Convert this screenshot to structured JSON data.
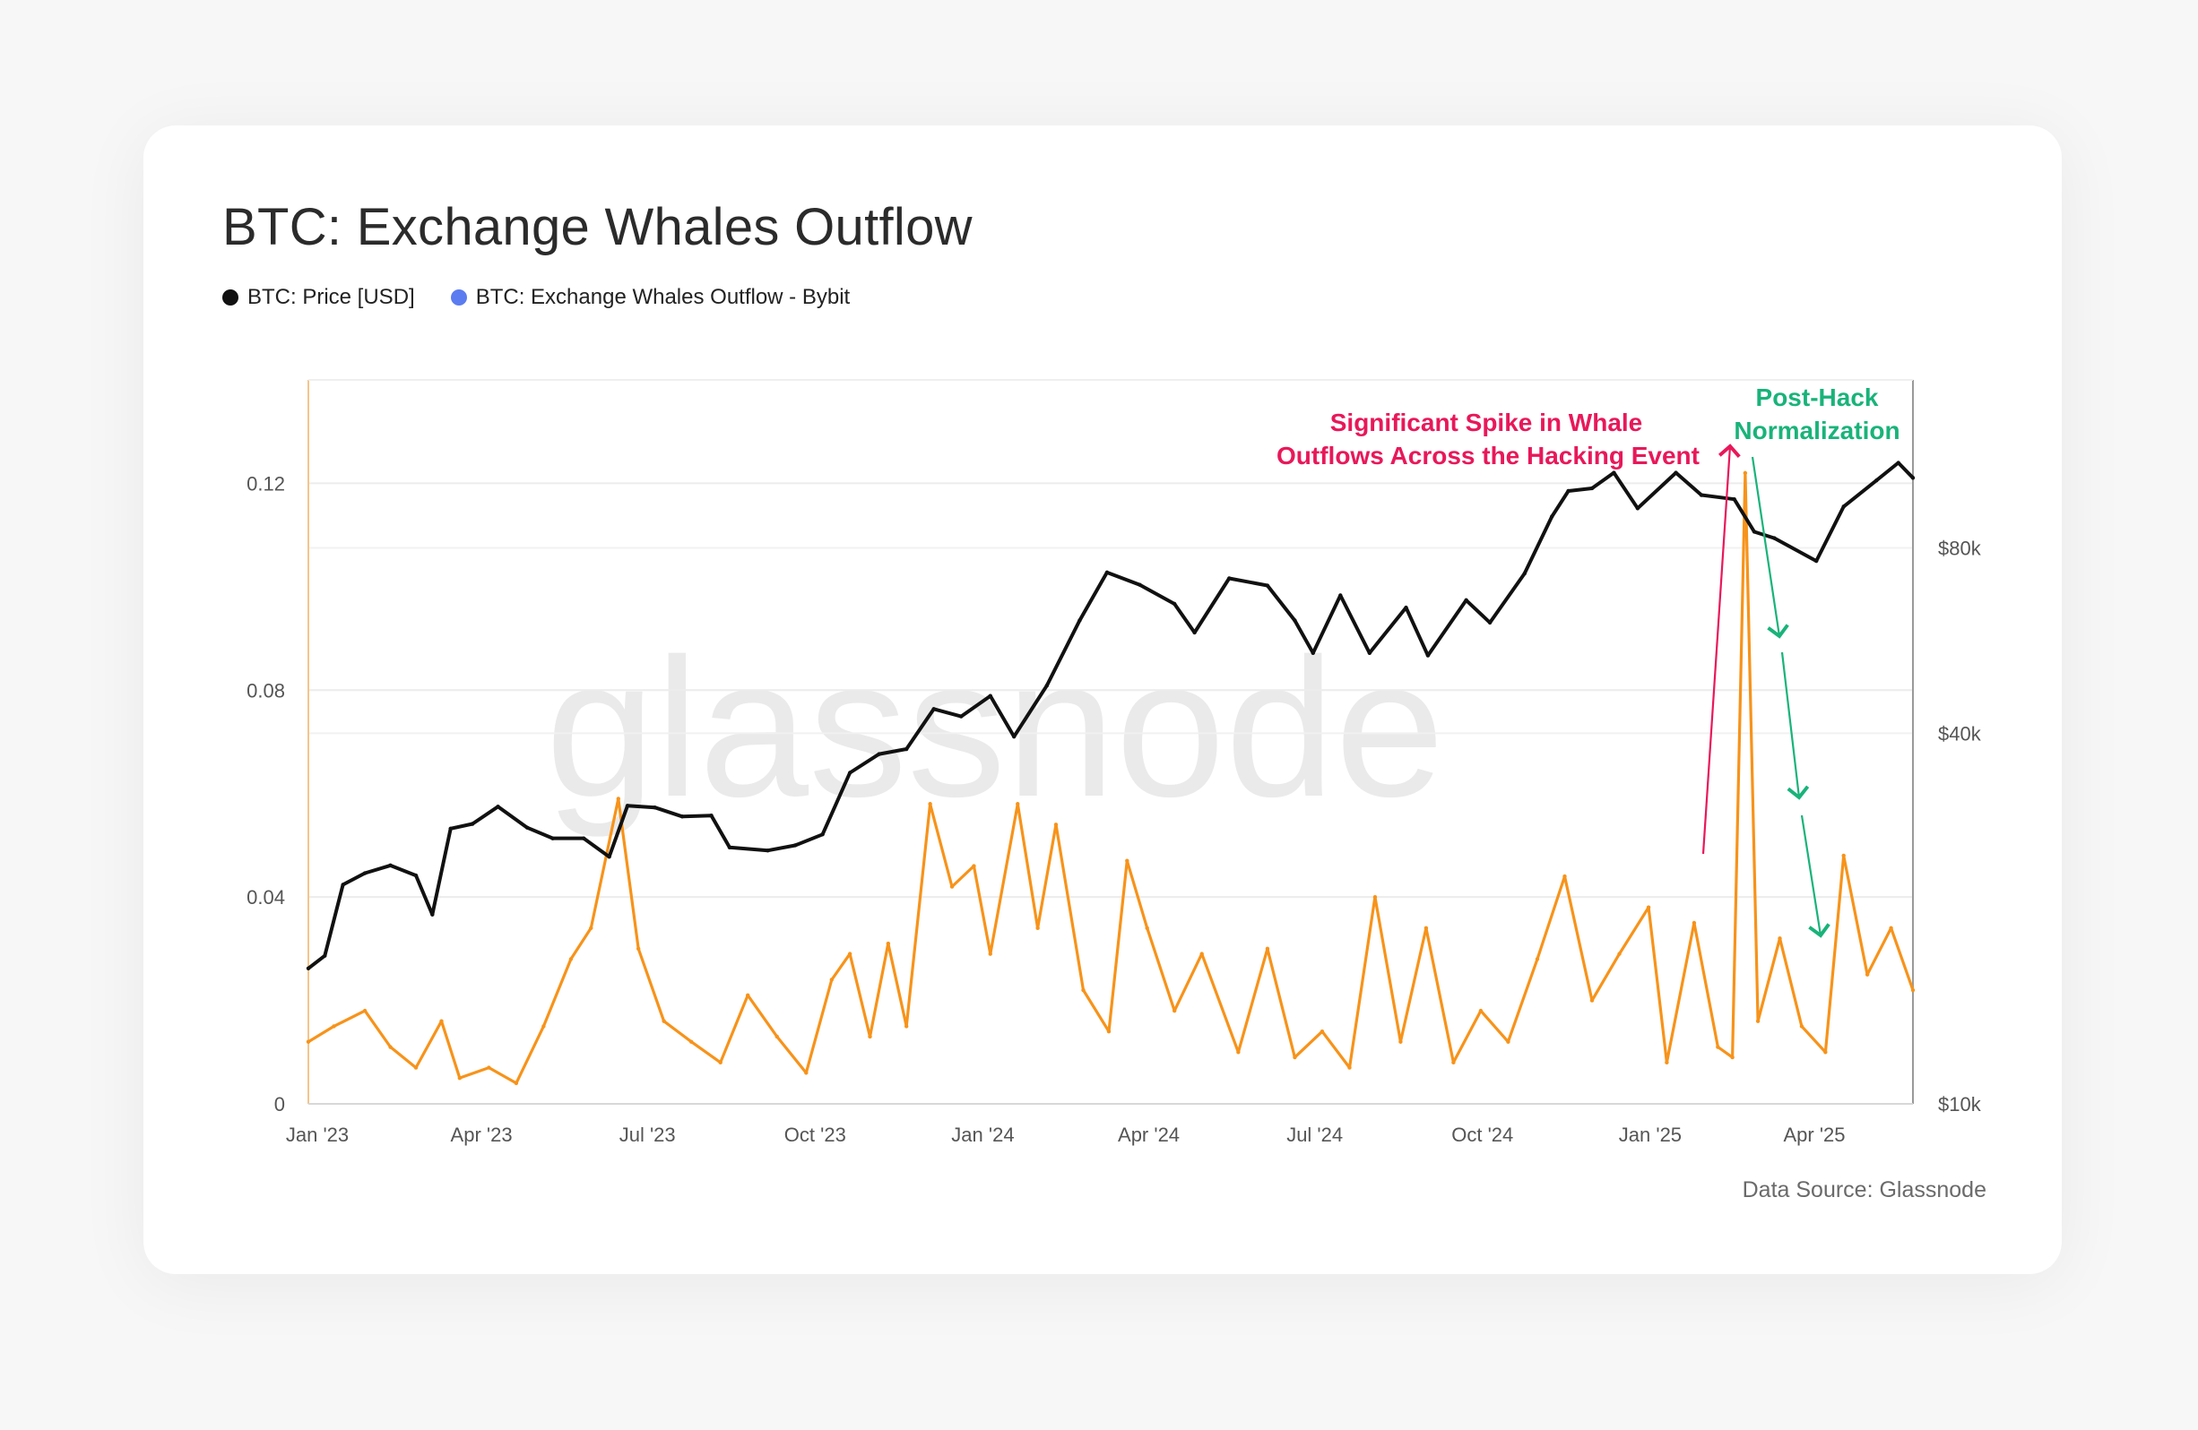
{
  "title": "BTC: Exchange Whales Outflow",
  "legend": [
    {
      "label": "BTC: Price [USD]",
      "color": "#111111"
    },
    {
      "label": "BTC: Exchange Whales Outflow - Bybit",
      "color": "#5b7cf0"
    }
  ],
  "source": "Data Source: Glassnode",
  "watermark": "glassnode",
  "annotations": {
    "spike": [
      "Significant Spike in Whale",
      "Outflows Across the Hacking Event"
    ],
    "normalization": [
      "Post-Hack",
      "Normalization"
    ]
  },
  "colors": {
    "price": "#111111",
    "outflow": "#f7931a",
    "spike_annotation": "#e8185a",
    "normalization_annotation": "#19b37a",
    "grid": "#ececec"
  },
  "chart_data": {
    "type": "line",
    "title": "BTC: Exchange Whales Outflow",
    "x_ticks": [
      "Jan '23",
      "Apr '23",
      "Jul '23",
      "Oct '23",
      "Jan '24",
      "Apr '24",
      "Jul '24",
      "Oct '24",
      "Jan '25",
      "Apr '25"
    ],
    "x_range": [
      "2023-01-01",
      "2025-05-30"
    ],
    "y_left": {
      "ticks": [
        "0",
        "0.04",
        "0.08",
        "0.12"
      ],
      "values": [
        0,
        0.04,
        0.08,
        0.12
      ],
      "range": [
        0,
        0.14
      ]
    },
    "y_right": {
      "ticks": [
        "$10k",
        "$40k",
        "$80k"
      ],
      "values": [
        10000,
        40000,
        80000
      ],
      "range": [
        10000,
        150000
      ],
      "scale": "log"
    },
    "grid": true,
    "legend_position": "top-left",
    "series": [
      {
        "name": "BTC: Price [USD]",
        "axis": "right",
        "color": "#111111",
        "points": [
          [
            "2023-01-01",
            16600
          ],
          [
            "2023-01-10",
            17400
          ],
          [
            "2023-01-20",
            22700
          ],
          [
            "2023-02-01",
            23700
          ],
          [
            "2023-02-15",
            24400
          ],
          [
            "2023-03-01",
            23500
          ],
          [
            "2023-03-10",
            20300
          ],
          [
            "2023-03-20",
            28000
          ],
          [
            "2023-04-01",
            28500
          ],
          [
            "2023-04-15",
            30400
          ],
          [
            "2023-05-01",
            28100
          ],
          [
            "2023-05-15",
            27000
          ],
          [
            "2023-06-01",
            27000
          ],
          [
            "2023-06-15",
            25200
          ],
          [
            "2023-06-25",
            30500
          ],
          [
            "2023-07-10",
            30300
          ],
          [
            "2023-07-25",
            29300
          ],
          [
            "2023-08-10",
            29400
          ],
          [
            "2023-08-20",
            26100
          ],
          [
            "2023-09-10",
            25800
          ],
          [
            "2023-09-25",
            26300
          ],
          [
            "2023-10-10",
            27400
          ],
          [
            "2023-10-25",
            34500
          ],
          [
            "2023-11-10",
            37000
          ],
          [
            "2023-11-25",
            37700
          ],
          [
            "2023-12-10",
            43800
          ],
          [
            "2023-12-25",
            42600
          ],
          [
            "2024-01-10",
            46000
          ],
          [
            "2024-01-23",
            39500
          ],
          [
            "2024-02-10",
            47800
          ],
          [
            "2024-02-28",
            61000
          ],
          [
            "2024-03-14",
            73000
          ],
          [
            "2024-04-01",
            69700
          ],
          [
            "2024-04-20",
            64900
          ],
          [
            "2024-05-01",
            58300
          ],
          [
            "2024-05-20",
            71400
          ],
          [
            "2024-06-10",
            69500
          ],
          [
            "2024-06-25",
            61000
          ],
          [
            "2024-07-05",
            54000
          ],
          [
            "2024-07-20",
            67000
          ],
          [
            "2024-08-05",
            54000
          ],
          [
            "2024-08-25",
            64000
          ],
          [
            "2024-09-06",
            53500
          ],
          [
            "2024-09-27",
            65800
          ],
          [
            "2024-10-10",
            60500
          ],
          [
            "2024-10-29",
            72700
          ],
          [
            "2024-11-13",
            90000
          ],
          [
            "2024-11-22",
            99000
          ],
          [
            "2024-12-05",
            100000
          ],
          [
            "2024-12-17",
            106000
          ],
          [
            "2024-12-30",
            92800
          ],
          [
            "2025-01-20",
            106000
          ],
          [
            "2025-02-03",
            97500
          ],
          [
            "2025-02-21",
            96000
          ],
          [
            "2025-03-04",
            85000
          ],
          [
            "2025-03-15",
            83000
          ],
          [
            "2025-04-07",
            76200
          ],
          [
            "2025-04-22",
            93400
          ],
          [
            "2025-05-10",
            103000
          ],
          [
            "2025-05-22",
            110000
          ],
          [
            "2025-05-30",
            104000
          ]
        ]
      },
      {
        "name": "BTC: Exchange Whales Outflow - Bybit",
        "axis": "left",
        "color": "#f7931a",
        "points": [
          [
            "2023-01-01",
            0.012
          ],
          [
            "2023-01-15",
            0.015
          ],
          [
            "2023-02-01",
            0.018
          ],
          [
            "2023-02-15",
            0.011
          ],
          [
            "2023-03-01",
            0.007
          ],
          [
            "2023-03-15",
            0.016
          ],
          [
            "2023-03-25",
            0.005
          ],
          [
            "2023-04-10",
            0.007
          ],
          [
            "2023-04-25",
            0.004
          ],
          [
            "2023-05-10",
            0.015
          ],
          [
            "2023-05-25",
            0.028
          ],
          [
            "2023-06-05",
            0.034
          ],
          [
            "2023-06-20",
            0.059
          ],
          [
            "2023-07-01",
            0.03
          ],
          [
            "2023-07-15",
            0.016
          ],
          [
            "2023-07-30",
            0.012
          ],
          [
            "2023-08-15",
            0.008
          ],
          [
            "2023-08-30",
            0.021
          ],
          [
            "2023-09-15",
            0.013
          ],
          [
            "2023-10-01",
            0.006
          ],
          [
            "2023-10-15",
            0.024
          ],
          [
            "2023-10-25",
            0.029
          ],
          [
            "2023-11-05",
            0.013
          ],
          [
            "2023-11-15",
            0.031
          ],
          [
            "2023-11-25",
            0.015
          ],
          [
            "2023-12-08",
            0.058
          ],
          [
            "2023-12-20",
            0.042
          ],
          [
            "2024-01-01",
            0.046
          ],
          [
            "2024-01-10",
            0.029
          ],
          [
            "2024-01-25",
            0.058
          ],
          [
            "2024-02-05",
            0.034
          ],
          [
            "2024-02-15",
            0.054
          ],
          [
            "2024-03-01",
            0.022
          ],
          [
            "2024-03-15",
            0.014
          ],
          [
            "2024-03-25",
            0.047
          ],
          [
            "2024-04-05",
            0.034
          ],
          [
            "2024-04-20",
            0.018
          ],
          [
            "2024-05-05",
            0.029
          ],
          [
            "2024-05-25",
            0.01
          ],
          [
            "2024-06-10",
            0.03
          ],
          [
            "2024-06-25",
            0.009
          ],
          [
            "2024-07-10",
            0.014
          ],
          [
            "2024-07-25",
            0.007
          ],
          [
            "2024-08-08",
            0.04
          ],
          [
            "2024-08-22",
            0.012
          ],
          [
            "2024-09-05",
            0.034
          ],
          [
            "2024-09-20",
            0.008
          ],
          [
            "2024-10-05",
            0.018
          ],
          [
            "2024-10-20",
            0.012
          ],
          [
            "2024-11-05",
            0.028
          ],
          [
            "2024-11-20",
            0.044
          ],
          [
            "2024-12-05",
            0.02
          ],
          [
            "2024-12-20",
            0.029
          ],
          [
            "2025-01-05",
            0.038
          ],
          [
            "2025-01-15",
            0.008
          ],
          [
            "2025-01-30",
            0.035
          ],
          [
            "2025-02-12",
            0.011
          ],
          [
            "2025-02-20",
            0.009
          ],
          [
            "2025-02-27",
            0.122
          ],
          [
            "2025-03-06",
            0.016
          ],
          [
            "2025-03-18",
            0.032
          ],
          [
            "2025-03-30",
            0.015
          ],
          [
            "2025-04-12",
            0.01
          ],
          [
            "2025-04-22",
            0.048
          ],
          [
            "2025-05-05",
            0.025
          ],
          [
            "2025-05-18",
            0.034
          ],
          [
            "2025-05-30",
            0.022
          ]
        ]
      }
    ]
  }
}
